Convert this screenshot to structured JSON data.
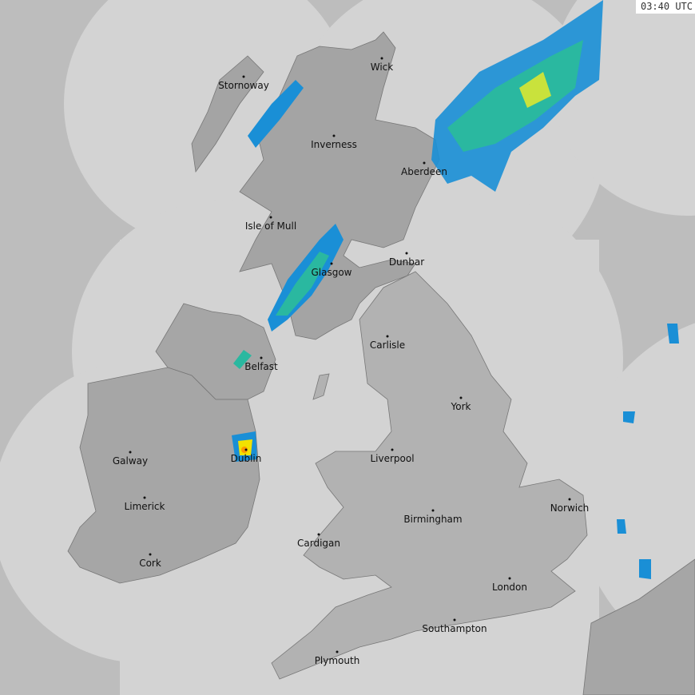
{
  "timestamp": "03:40 UTC",
  "colors": {
    "outside_coverage": "#bdbdbd",
    "coverage": "#d3d3d3",
    "land_scotland": "#a4a4a4",
    "land_england_wales": "#b2b2b2",
    "land_ireland": "#a6a6a6",
    "rain_light": "#1a8fd6",
    "rain_moderate": "#2ab8a0",
    "rain_heavy": "#f2e200",
    "rain_very_heavy": "#ff9900"
  },
  "cities": [
    {
      "name": "Stornoway"
    },
    {
      "name": "Wick"
    },
    {
      "name": "Inverness"
    },
    {
      "name": "Aberdeen"
    },
    {
      "name": "Isle of Mull"
    },
    {
      "name": "Dunbar"
    },
    {
      "name": "Glasgow"
    },
    {
      "name": "Belfast"
    },
    {
      "name": "Carlisle"
    },
    {
      "name": "York"
    },
    {
      "name": "Galway"
    },
    {
      "name": "Dublin"
    },
    {
      "name": "Liverpool"
    },
    {
      "name": "Limerick"
    },
    {
      "name": "Norwich"
    },
    {
      "name": "Birmingham"
    },
    {
      "name": "Cardigan"
    },
    {
      "name": "Cork"
    },
    {
      "name": "London"
    },
    {
      "name": "Southampton"
    },
    {
      "name": "Plymouth"
    }
  ]
}
